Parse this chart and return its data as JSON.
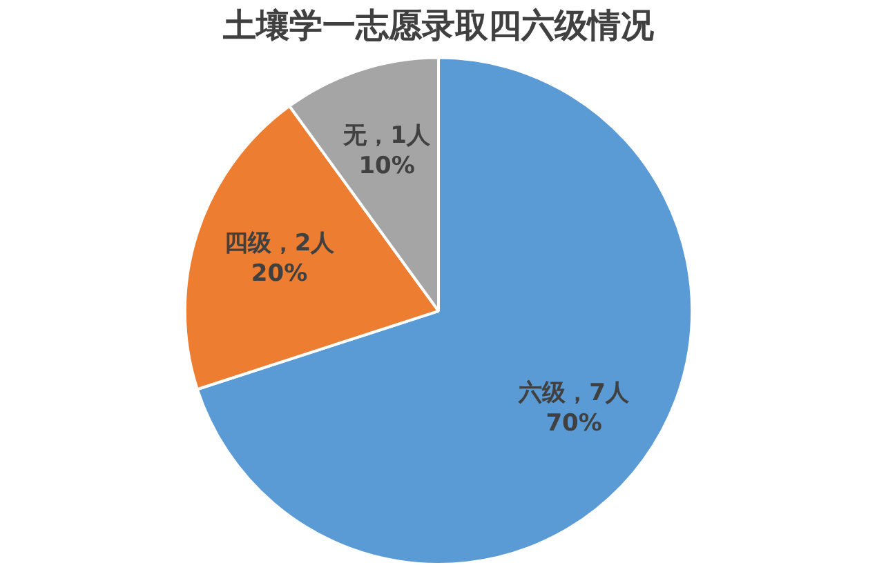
{
  "chart_data": {
    "type": "pie",
    "title": "土壤学一志愿录取四六级情况",
    "categories": [
      "六级",
      "四级",
      "无"
    ],
    "values": [
      7,
      2,
      1
    ],
    "colors": [
      "#5b9bd5",
      "#ed7d31",
      "#a5a5a5"
    ],
    "value_labels": [
      "，7人\n70%",
      "，2人\n20%",
      "，1人\n10%"
    ],
    "legend": false
  }
}
